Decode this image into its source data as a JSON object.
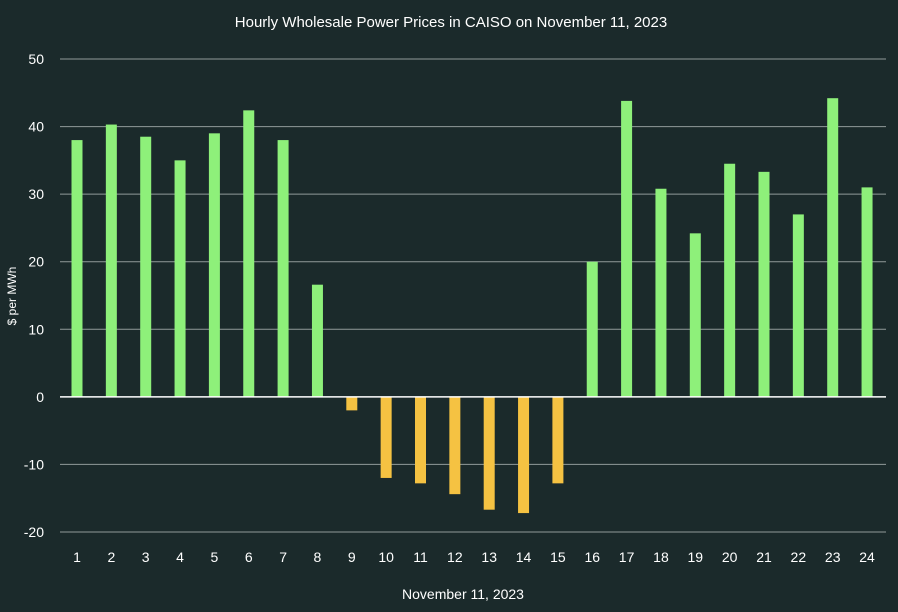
{
  "chart_data": {
    "type": "bar",
    "title": "Hourly Wholesale Power Prices in CAISO on November 11, 2023",
    "xlabel": "November 11, 2023",
    "ylabel": "$ per MWh",
    "ylim": [
      -20,
      50
    ],
    "yticks": [
      50,
      40,
      30,
      20,
      10,
      0,
      -10,
      -20
    ],
    "grid": true,
    "legend": "none",
    "categories": [
      "1",
      "2",
      "3",
      "4",
      "5",
      "6",
      "7",
      "8",
      "9",
      "10",
      "11",
      "12",
      "13",
      "14",
      "15",
      "16",
      "17",
      "18",
      "19",
      "20",
      "21",
      "22",
      "23",
      "24"
    ],
    "values": [
      38.0,
      40.3,
      38.5,
      35.0,
      39.0,
      42.4,
      38.0,
      16.6,
      -2.0,
      -12.0,
      -12.8,
      -14.4,
      -16.7,
      -17.2,
      -12.8,
      20.0,
      43.8,
      30.8,
      24.2,
      34.5,
      33.3,
      27.0,
      44.2,
      31.0
    ],
    "colors": {
      "background": "#1b2a2b",
      "positive": "#8ef07a",
      "negative": "#f5c242",
      "grid": "#b9c0c0",
      "zero_line": "#ffffff",
      "text": "#ffffff"
    }
  }
}
